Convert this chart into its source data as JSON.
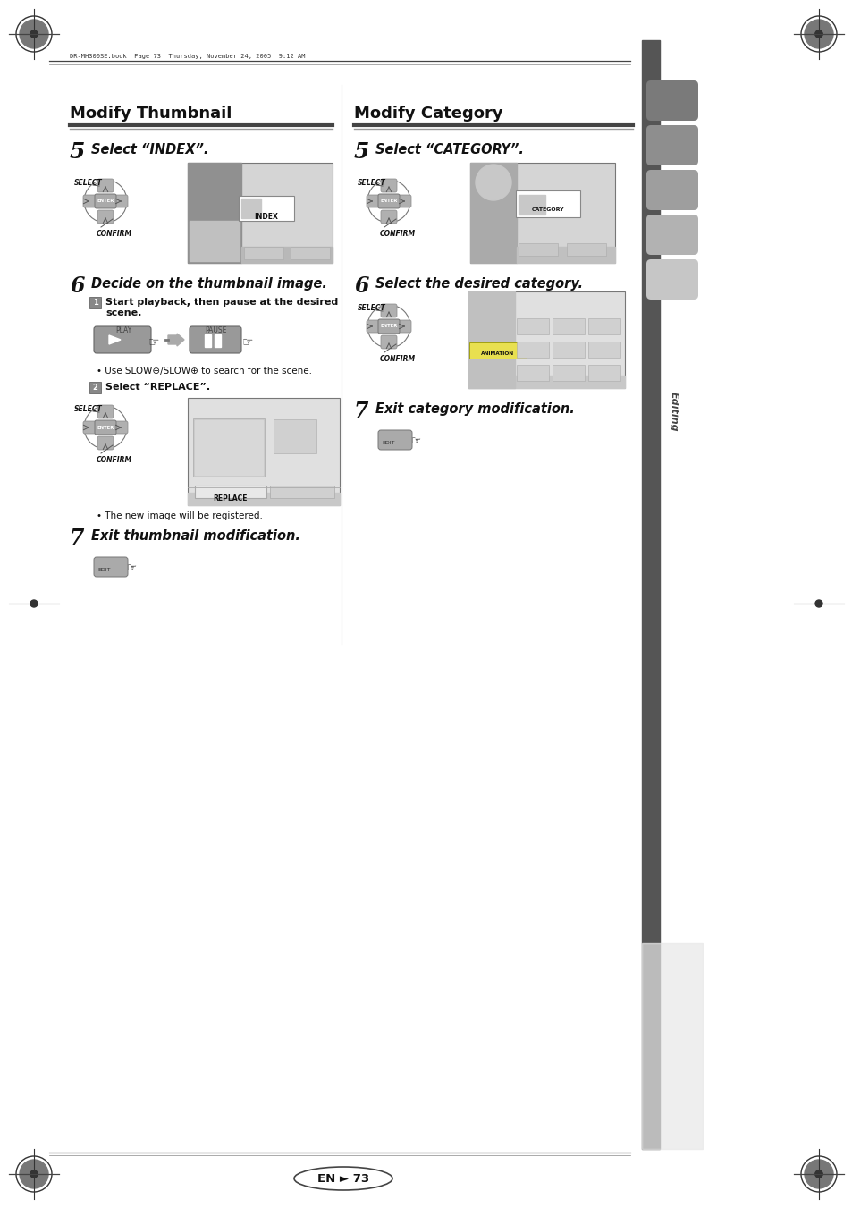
{
  "page_bg": "#ffffff",
  "left_title": "Modify Thumbnail",
  "right_title": "Modify Category",
  "header_text": "DR-MH300SE.book  Page 73  Thursday, November 24, 2005  9:12 AM",
  "footer_text": "EN ► 73",
  "editing_text": "Editing",
  "step5L_num": "5",
  "step5L_text": "Select “INDEX”.",
  "step6L_num": "6",
  "step6L_text": "Decide on the thumbnail image.",
  "step6L_s1": "Start playback, then pause at the desired\nscene.",
  "step6L_bullet": "• Use SLOW⊖/SLOW⊕ to search for the scene.",
  "step6L_s2": "Select “REPLACE”.",
  "step7L_num": "7",
  "step7L_text": "Exit thumbnail modification.",
  "new_image": "• The new image will be registered.",
  "step5R_num": "5",
  "step5R_text": "Select “CATEGORY”.",
  "step6R_num": "6",
  "step6R_text": "Select the desired category.",
  "step7R_num": "7",
  "step7R_text": "Exit category modification.",
  "select_label": "SELECT",
  "confirm_label": "CONFIRM",
  "enter_label": "ENTER",
  "play_label": "PLAY",
  "pause_label": "PAUSE",
  "index_label": "INDEX",
  "category_label": "CATEGORY",
  "animation_label": "ANIMATION",
  "replace_label": "REPLACE",
  "edit_label": "EDIT",
  "sidebar_bar_color": "#555555",
  "tab_colors": [
    "#7a7a7a",
    "#8e8e8e",
    "#9e9e9e",
    "#b2b2b2",
    "#c6c6c6"
  ],
  "dark_gray": "#555555",
  "mid_gray": "#888888",
  "light_gray": "#cccccc",
  "screen_bg": "#d8d8d8",
  "divider_dark": "#444444",
  "divider_light": "#999999"
}
